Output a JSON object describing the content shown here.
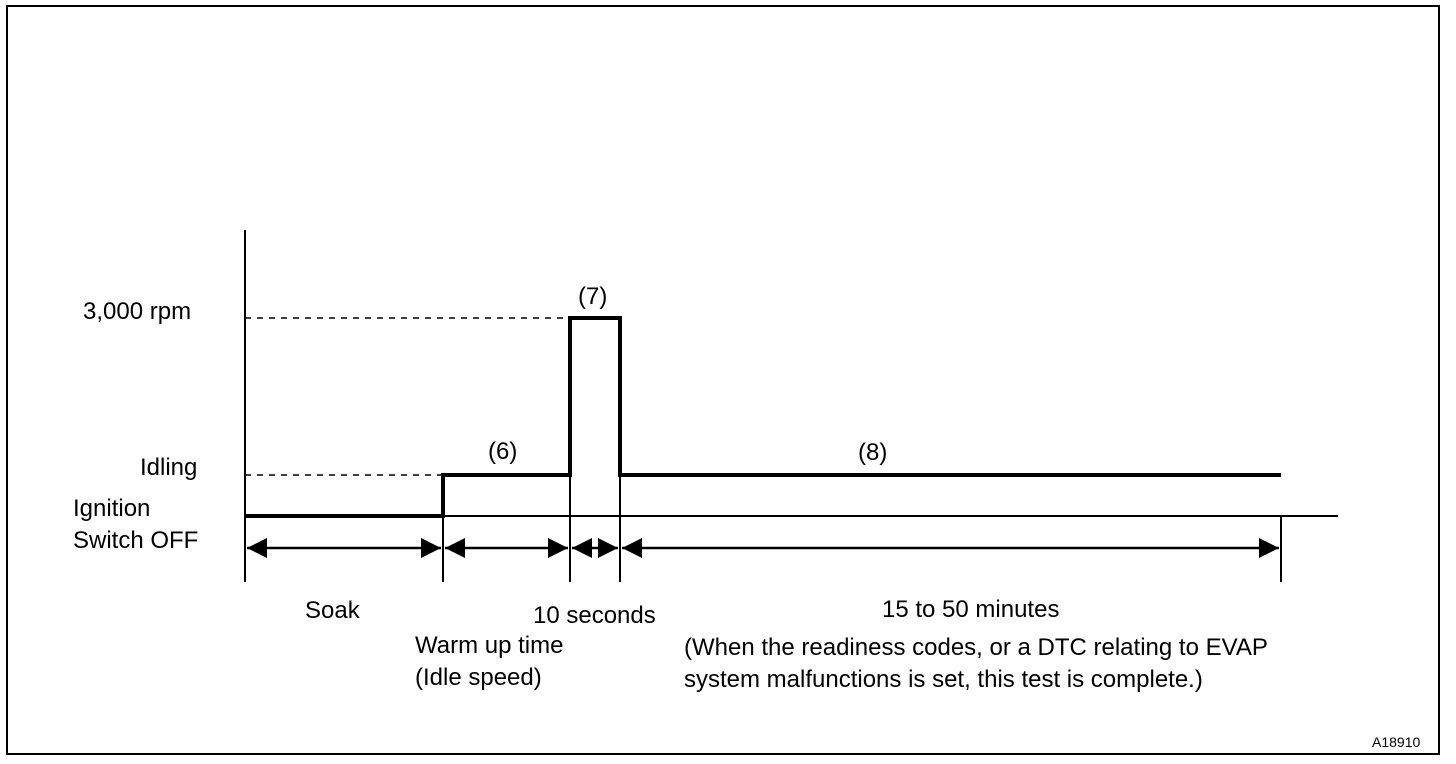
{
  "levels": {
    "rpm_3000": "3,000 rpm",
    "idling": "Idling",
    "ignition_line1": "Ignition",
    "ignition_line2": "Switch OFF"
  },
  "steps": {
    "step6": "(6)",
    "step7": "(7)",
    "step8": "(8)"
  },
  "phases": {
    "soak": "Soak",
    "warmup_line1": "Warm up time",
    "warmup_line2": "(Idle speed)",
    "ten_seconds": "10 seconds",
    "duration_line1": "15 to 50 minutes",
    "duration_line2": "(When the readiness codes, or a DTC relating to EVAP",
    "duration_line3": "system malfunctions is set, this test is complete.)"
  },
  "figure_id": "A18910"
}
